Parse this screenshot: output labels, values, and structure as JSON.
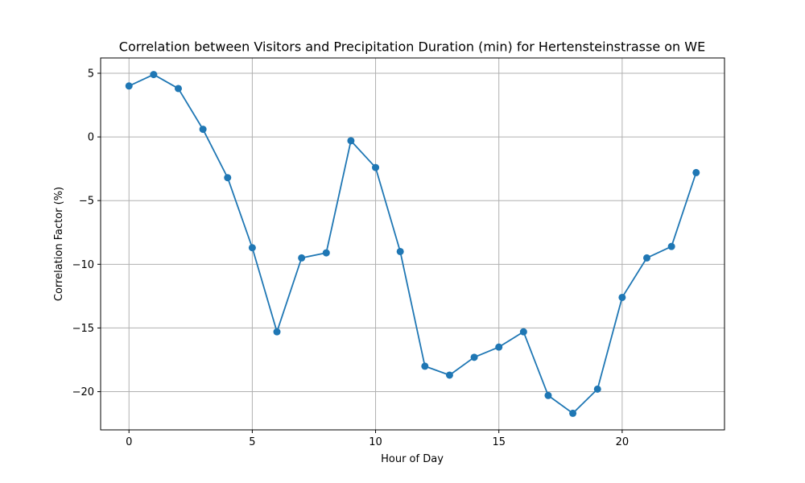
{
  "chart_data": {
    "type": "line",
    "title": "Correlation between Visitors and Precipitation Duration (min) for Hertensteinstrasse on WE",
    "xlabel": "Hour of Day",
    "ylabel": "Correlation Factor (%)",
    "x": [
      0,
      1,
      2,
      3,
      4,
      5,
      6,
      7,
      8,
      9,
      10,
      11,
      12,
      13,
      14,
      15,
      16,
      17,
      18,
      19,
      20,
      21,
      22,
      23
    ],
    "series": [
      {
        "values": [
          4.0,
          4.9,
          3.8,
          0.6,
          -3.2,
          -8.7,
          -15.3,
          -9.5,
          -9.1,
          -0.3,
          -2.4,
          -9.0,
          -18.0,
          -18.7,
          -17.3,
          -16.5,
          -15.3,
          -20.3,
          -21.7,
          -19.8,
          -12.6,
          -9.5,
          -8.6,
          -2.8
        ]
      }
    ],
    "xlim": [
      -1.15,
      24.15
    ],
    "ylim": [
      -23.0,
      6.2
    ],
    "xticks": [
      0,
      5,
      10,
      15,
      20
    ],
    "yticks": [
      5,
      0,
      -5,
      -10,
      -15,
      -20
    ],
    "xtick_labels": [
      "0",
      "5",
      "10",
      "15",
      "20"
    ],
    "ytick_labels": [
      "5",
      "0",
      "−5",
      "−10",
      "−15",
      "−20"
    ],
    "grid": true,
    "line_color": "#1f77b4",
    "marker": "circle"
  }
}
